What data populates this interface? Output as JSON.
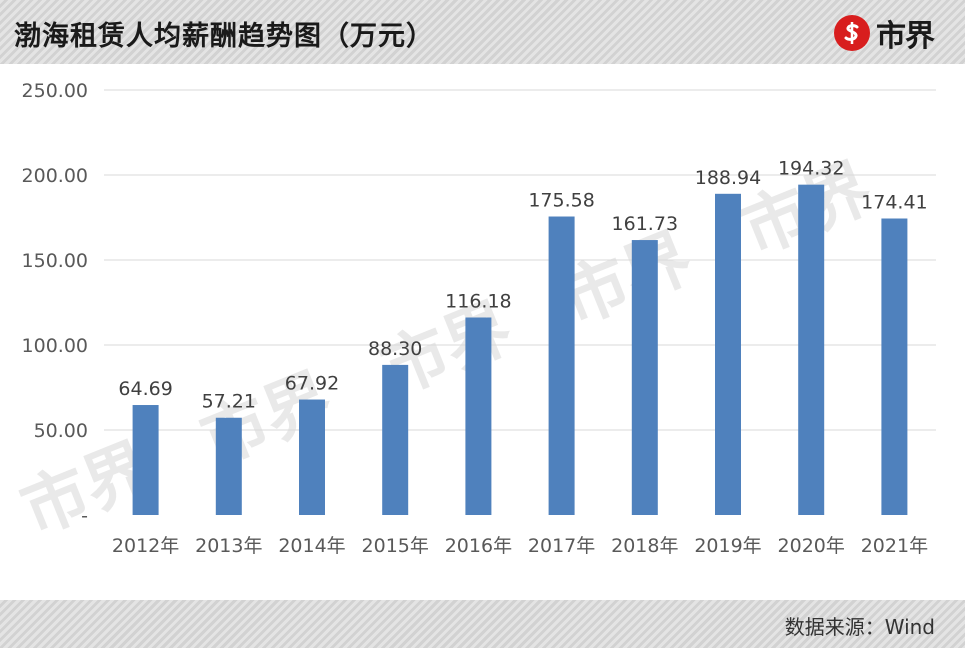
{
  "header": {
    "title": "渤海租赁人均薪酬趋势图（万元）",
    "logo_text": "市界"
  },
  "footer": {
    "source": "数据来源：Wind"
  },
  "watermark_text": "市界",
  "colors": {
    "bar": "#4f81bd",
    "logo_red": "#d81e1e",
    "grid": "#d9d9d9"
  },
  "chart_data": {
    "type": "bar",
    "title": "渤海租赁人均薪酬趋势图（万元）",
    "categories": [
      "2012年",
      "2013年",
      "2014年",
      "2015年",
      "2016年",
      "2017年",
      "2018年",
      "2019年",
      "2020年",
      "2021年"
    ],
    "values": [
      64.69,
      57.21,
      67.92,
      88.3,
      116.18,
      175.58,
      161.73,
      188.94,
      194.32,
      174.41
    ],
    "data_labels": [
      "64.69",
      "57.21",
      "67.92",
      "88.30",
      "116.18",
      "175.58",
      "161.73",
      "188.94",
      "194.32",
      "174.41"
    ],
    "y_ticks": [
      "-",
      "50.00",
      "100.00",
      "150.00",
      "200.00",
      "250.00"
    ],
    "ylim": [
      0,
      250
    ],
    "xlabel": "",
    "ylabel": "",
    "grid": true,
    "legend": "none"
  }
}
